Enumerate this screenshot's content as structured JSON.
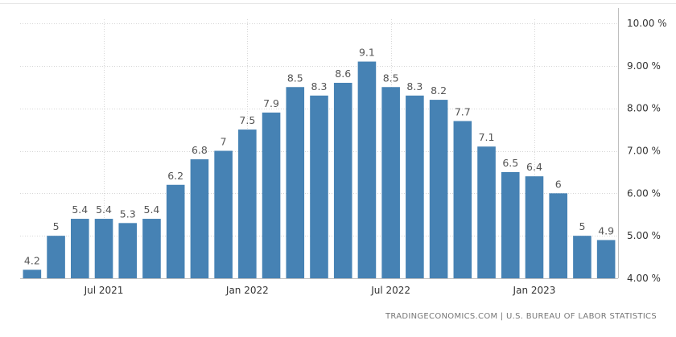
{
  "chart_data": {
    "type": "bar",
    "categories": [
      "Apr 2021",
      "May 2021",
      "Jun 2021",
      "Jul 2021",
      "Aug 2021",
      "Sep 2021",
      "Oct 2021",
      "Nov 2021",
      "Dec 2021",
      "Jan 2022",
      "Feb 2022",
      "Mar 2022",
      "Apr 2022",
      "May 2022",
      "Jun 2022",
      "Jul 2022",
      "Aug 2022",
      "Sep 2022",
      "Oct 2022",
      "Nov 2022",
      "Dec 2022",
      "Jan 2023",
      "Feb 2023",
      "Mar 2023",
      "Apr 2023"
    ],
    "values": [
      4.2,
      5,
      5.4,
      5.4,
      5.3,
      5.4,
      6.2,
      6.8,
      7,
      7.5,
      7.9,
      8.5,
      8.3,
      8.6,
      9.1,
      8.5,
      8.3,
      8.2,
      7.7,
      7.1,
      6.5,
      6.4,
      6,
      5,
      4.9
    ],
    "data_labels": [
      "4.2",
      "5",
      "5.4",
      "5.4",
      "5.3",
      "5.4",
      "6.2",
      "6.8",
      "7",
      "7.5",
      "7.9",
      "8.5",
      "8.3",
      "8.6",
      "9.1",
      "8.5",
      "8.3",
      "8.2",
      "7.7",
      "7.1",
      "6.5",
      "6.4",
      "6",
      "5",
      "4.9"
    ],
    "ylim": [
      4,
      10
    ],
    "y_ticks": [
      {
        "value": 10,
        "label": "10.00 %"
      },
      {
        "value": 9,
        "label": "9.00 %"
      },
      {
        "value": 8,
        "label": "8.00 %"
      },
      {
        "value": 7,
        "label": "7.00 %"
      },
      {
        "value": 6,
        "label": "6.00 %"
      },
      {
        "value": 5,
        "label": "5.00 %"
      },
      {
        "value": 4,
        "label": "4.00 %"
      }
    ],
    "x_ticks": [
      {
        "index": 3,
        "label": "Jul 2021"
      },
      {
        "index": 9,
        "label": "Jan 2022"
      },
      {
        "index": 15,
        "label": "Jul 2022"
      },
      {
        "index": 21,
        "label": "Jan 2023"
      }
    ],
    "y_axis_position": "right",
    "grid": true,
    "bar_color": "#4682b4"
  },
  "source_text": "TRADINGECONOMICS.COM | U.S. BUREAU OF LABOR STATISTICS"
}
